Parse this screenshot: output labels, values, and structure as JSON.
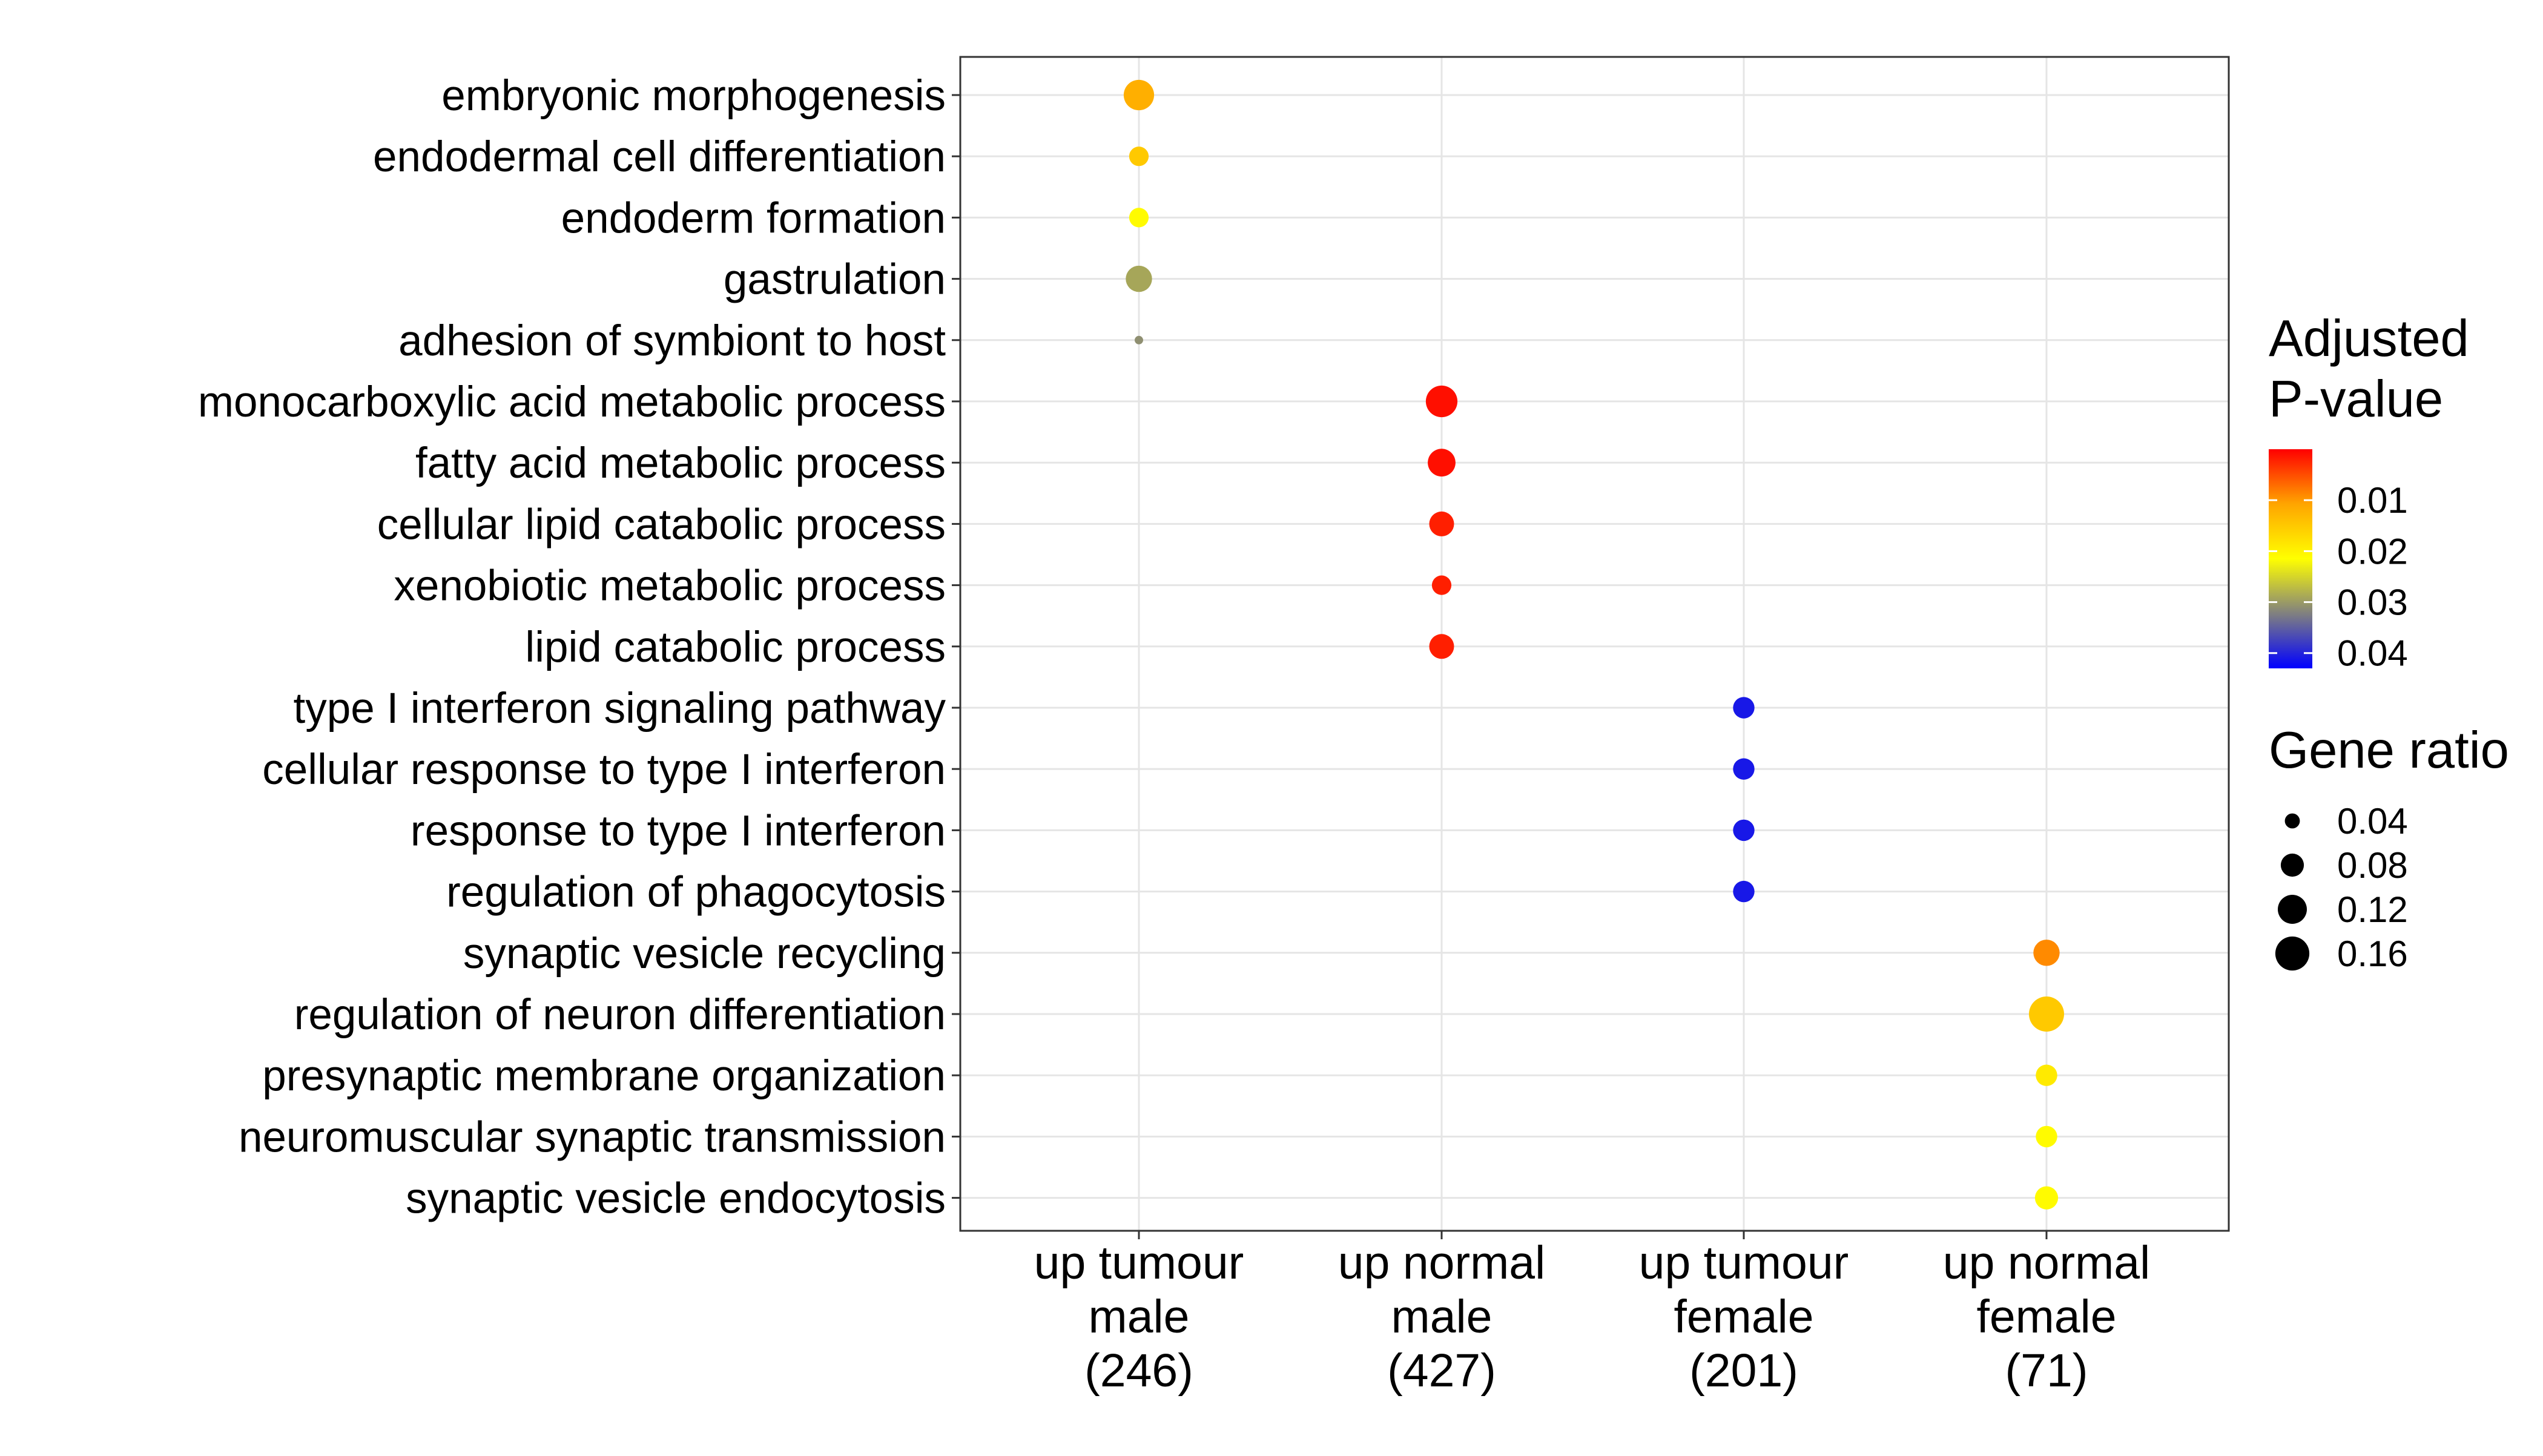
{
  "chart_data": {
    "type": "scatter",
    "x_categories": [
      [
        "up tumour",
        "male",
        "(246)"
      ],
      [
        "up normal",
        "male",
        "(427)"
      ],
      [
        "up tumour",
        "female",
        "(201)"
      ],
      [
        "up normal",
        "female",
        "(71)"
      ]
    ],
    "y_categories": [
      "embryonic morphogenesis",
      "endodermal cell differentiation",
      "endoderm formation",
      "gastrulation",
      "adhesion of symbiont to host",
      "monocarboxylic acid metabolic process",
      "fatty acid metabolic process",
      "cellular lipid catabolic process",
      "xenobiotic metabolic process",
      "lipid catabolic process",
      "type I interferon signaling pathway",
      "cellular response to type I interferon",
      "response to type I interferon",
      "regulation of phagocytosis",
      "synaptic vesicle recycling",
      "regulation of neuron differentiation",
      "presynaptic membrane organization",
      "neuromuscular synaptic transmission",
      "synaptic vesicle endocytosis"
    ],
    "points": [
      {
        "x": 0,
        "y": 0,
        "p_adjusted": 0.012,
        "gene_ratio": 0.13
      },
      {
        "x": 0,
        "y": 1,
        "p_adjusted": 0.015,
        "gene_ratio": 0.06
      },
      {
        "x": 0,
        "y": 2,
        "p_adjusted": 0.021,
        "gene_ratio": 0.06
      },
      {
        "x": 0,
        "y": 3,
        "p_adjusted": 0.029,
        "gene_ratio": 0.1
      },
      {
        "x": 0,
        "y": 4,
        "p_adjusted": 0.031,
        "gene_ratio": 0.02
      },
      {
        "x": 1,
        "y": 5,
        "p_adjusted": 0.001,
        "gene_ratio": 0.14
      },
      {
        "x": 1,
        "y": 6,
        "p_adjusted": 0.001,
        "gene_ratio": 0.11
      },
      {
        "x": 1,
        "y": 7,
        "p_adjusted": 0.002,
        "gene_ratio": 0.09
      },
      {
        "x": 1,
        "y": 8,
        "p_adjusted": 0.002,
        "gene_ratio": 0.06
      },
      {
        "x": 1,
        "y": 9,
        "p_adjusted": 0.002,
        "gene_ratio": 0.09
      },
      {
        "x": 2,
        "y": 10,
        "p_adjusted": 0.041,
        "gene_ratio": 0.07
      },
      {
        "x": 2,
        "y": 11,
        "p_adjusted": 0.041,
        "gene_ratio": 0.07
      },
      {
        "x": 2,
        "y": 12,
        "p_adjusted": 0.041,
        "gene_ratio": 0.07
      },
      {
        "x": 2,
        "y": 13,
        "p_adjusted": 0.041,
        "gene_ratio": 0.07
      },
      {
        "x": 3,
        "y": 14,
        "p_adjusted": 0.009,
        "gene_ratio": 0.1
      },
      {
        "x": 3,
        "y": 15,
        "p_adjusted": 0.015,
        "gene_ratio": 0.17
      },
      {
        "x": 3,
        "y": 16,
        "p_adjusted": 0.019,
        "gene_ratio": 0.07
      },
      {
        "x": 3,
        "y": 17,
        "p_adjusted": 0.021,
        "gene_ratio": 0.07
      },
      {
        "x": 3,
        "y": 18,
        "p_adjusted": 0.021,
        "gene_ratio": 0.08
      }
    ],
    "color_legend": {
      "title": [
        "Adjusted",
        "P-value"
      ],
      "domain": [
        0.0,
        0.043
      ],
      "ticks": [
        0.01,
        0.02,
        0.03,
        0.04
      ],
      "tick_labels": [
        "0.01",
        "0.02",
        "0.03",
        "0.04"
      ],
      "colors": [
        "#ff0000",
        "#ffa500",
        "#ffff00",
        "#808080",
        "#0000ff"
      ]
    },
    "size_legend": {
      "title": "Gene ratio",
      "values": [
        0.04,
        0.08,
        0.12,
        0.16
      ],
      "labels": [
        "0.04",
        "0.08",
        "0.12",
        "0.16"
      ],
      "min": 0.02,
      "max": 0.17
    },
    "grid": true,
    "legend_position": "right"
  }
}
